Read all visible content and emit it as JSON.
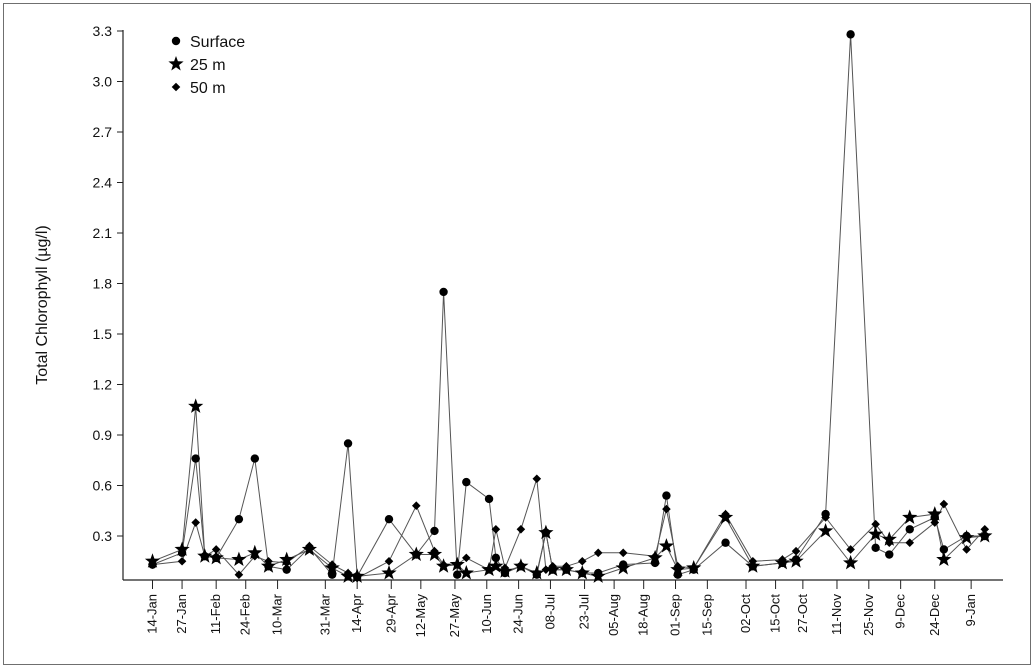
{
  "chart_data": {
    "type": "line",
    "ylabel": "Total Chlorophyll (µg/l)",
    "xlabel": "",
    "ylim": [
      0.03,
      3.3
    ],
    "yticks": [
      "0.3",
      "0.6",
      "0.9",
      "1.2",
      "1.5",
      "1.8",
      "2.1",
      "2.4",
      "2.7",
      "3.0",
      "3.3"
    ],
    "grid": false,
    "legend_position": "top-left",
    "xticks": [
      "14-Jan",
      "27-Jan",
      "11-Feb",
      "24-Feb",
      "10-Mar",
      "31-Mar",
      "14-Apr",
      "29-Apr",
      "12-May",
      "27-May",
      "10-Jun",
      "24-Jun",
      "08-Jul",
      "23-Jul",
      "05-Aug",
      "18-Aug",
      "01-Sep",
      "15-Sep",
      "02-Oct",
      "15-Oct",
      "27-Oct",
      "11-Nov",
      "25-Nov",
      "9-Dec",
      "24-Dec",
      "9-Jan"
    ],
    "xtick_days": [
      0,
      13,
      28,
      41,
      55,
      76,
      90,
      105,
      118,
      133,
      147,
      161,
      175,
      190,
      203,
      216,
      230,
      244,
      261,
      274,
      286,
      301,
      315,
      329,
      344,
      360
    ],
    "series": [
      {
        "name": "Surface",
        "marker": "circle",
        "x": [
          0,
          13,
          19,
          23,
          28,
          38,
          45,
          51,
          59,
          69,
          79,
          86,
          90,
          104,
          116,
          124,
          128,
          134,
          138,
          148,
          151,
          155,
          162,
          169,
          173,
          176,
          182,
          189,
          196,
          207,
          221,
          226,
          231,
          238,
          252,
          264,
          277,
          283,
          296,
          307,
          318,
          324,
          333,
          344,
          348,
          358,
          366
        ],
        "y": [
          0.13,
          0.2,
          0.76,
          0.18,
          0.17,
          0.4,
          0.76,
          0.12,
          0.1,
          0.23,
          0.07,
          0.85,
          0.06,
          0.4,
          0.19,
          0.33,
          1.75,
          0.07,
          0.62,
          0.52,
          0.17,
          0.08,
          0.12,
          0.07,
          0.32,
          0.1,
          0.1,
          0.08,
          0.08,
          0.13,
          0.14,
          0.54,
          0.07,
          0.1,
          0.26,
          0.12,
          0.14,
          0.16,
          0.43,
          3.28,
          0.23,
          0.19,
          0.34,
          0.41,
          0.22,
          0.3,
          0.3
        ]
      },
      {
        "name": "25 m",
        "marker": "star",
        "x": [
          0,
          13,
          19,
          23,
          28,
          38,
          45,
          51,
          59,
          69,
          79,
          86,
          90,
          104,
          116,
          124,
          128,
          134,
          138,
          148,
          151,
          155,
          162,
          169,
          173,
          176,
          182,
          189,
          196,
          207,
          221,
          226,
          231,
          238,
          252,
          264,
          277,
          283,
          296,
          307,
          318,
          324,
          333,
          344,
          348,
          358,
          366
        ],
        "y": [
          0.15,
          0.22,
          1.07,
          0.18,
          0.17,
          0.16,
          0.2,
          0.12,
          0.16,
          0.22,
          0.11,
          0.06,
          0.06,
          0.08,
          0.19,
          0.19,
          0.12,
          0.13,
          0.08,
          0.1,
          0.12,
          0.09,
          0.12,
          0.08,
          0.32,
          0.1,
          0.1,
          0.08,
          0.06,
          0.11,
          0.17,
          0.24,
          0.1,
          0.11,
          0.41,
          0.12,
          0.14,
          0.15,
          0.33,
          0.14,
          0.31,
          0.28,
          0.41,
          0.43,
          0.16,
          0.29,
          0.3
        ]
      },
      {
        "name": "50 m",
        "marker": "diamond",
        "x": [
          0,
          13,
          19,
          23,
          28,
          38,
          45,
          51,
          59,
          69,
          79,
          86,
          90,
          104,
          116,
          124,
          128,
          134,
          138,
          148,
          151,
          155,
          162,
          169,
          173,
          176,
          182,
          189,
          196,
          207,
          221,
          226,
          231,
          238,
          252,
          264,
          277,
          283,
          296,
          307,
          318,
          324,
          333,
          344,
          348,
          358,
          366
        ],
        "y": [
          0.13,
          0.15,
          0.38,
          0.18,
          0.22,
          0.07,
          0.18,
          0.15,
          0.14,
          0.24,
          0.13,
          0.08,
          0.05,
          0.15,
          0.48,
          0.21,
          0.13,
          0.13,
          0.17,
          0.1,
          0.34,
          0.11,
          0.34,
          0.64,
          0.1,
          0.12,
          0.12,
          0.15,
          0.2,
          0.2,
          0.18,
          0.46,
          0.12,
          0.11,
          0.43,
          0.15,
          0.16,
          0.21,
          0.41,
          0.22,
          0.37,
          0.26,
          0.26,
          0.38,
          0.49,
          0.22,
          0.34
        ]
      }
    ]
  }
}
